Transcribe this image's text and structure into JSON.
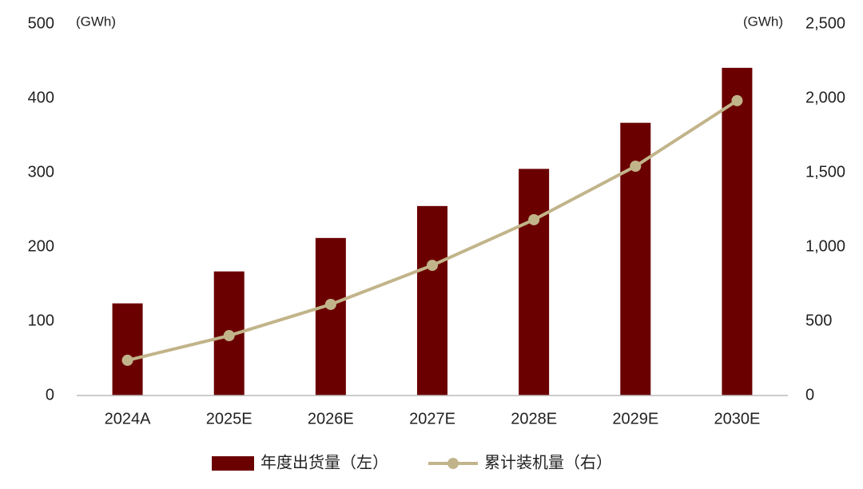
{
  "chart_data": {
    "type": "bar-line",
    "y_label": "(GWh)",
    "y2_label": "(GWh)",
    "categories": [
      "2024A",
      "2025E",
      "2026E",
      "2027E",
      "2028E",
      "2029E",
      "2030E"
    ],
    "series": [
      {
        "name": "年度出货量（左）",
        "type": "bar",
        "color": "#6b0000",
        "values": [
          124,
          167,
          212,
          255,
          305,
          367,
          441
        ]
      },
      {
        "name": "累计装机量（右）",
        "type": "line",
        "axis": "y2",
        "color": "#c2b48a",
        "values": [
          237,
          403,
          613,
          876,
          1183,
          1543,
          1984
        ]
      }
    ],
    "ylim": [
      0,
      500
    ],
    "yticks": [
      0,
      100,
      200,
      300,
      400,
      500
    ],
    "y2lim": [
      0,
      2500
    ],
    "y2ticks": [
      0,
      500,
      {
        "value": 1000,
        "label": "1,000"
      },
      {
        "value": 1500,
        "label": "1,500"
      },
      {
        "value": 2000,
        "label": "2,000"
      },
      {
        "value": 2500,
        "label": "2,500"
      }
    ],
    "legend": "bottom"
  }
}
